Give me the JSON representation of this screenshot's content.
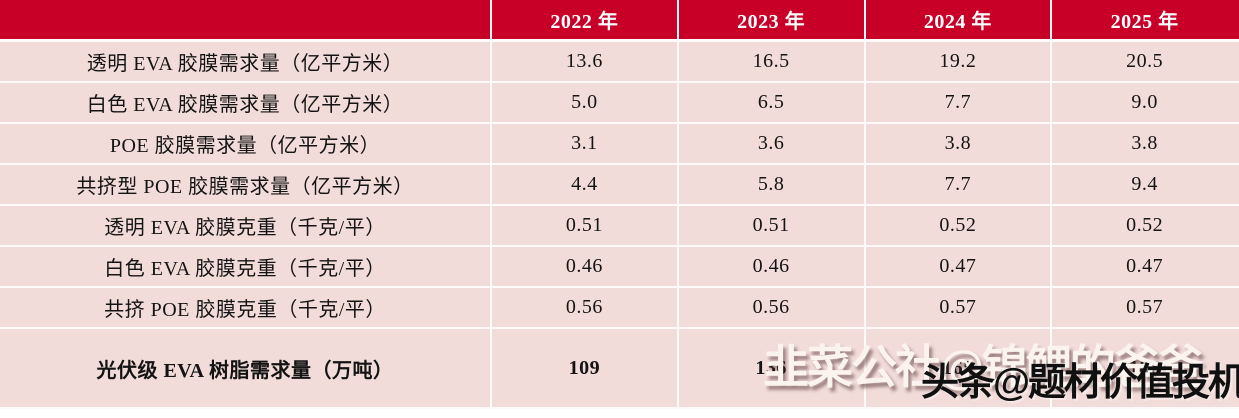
{
  "chart_data": {
    "type": "table",
    "title": "",
    "corner_label": "",
    "columns": [
      "2022 年",
      "2023 年",
      "2024 年",
      "2025 年"
    ],
    "rows": [
      {
        "label": "透明 EVA 胶膜需求量（亿平方米）",
        "values": [
          "13.6",
          "16.5",
          "19.2",
          "20.5"
        ]
      },
      {
        "label": "白色 EVA 胶膜需求量（亿平方米）",
        "values": [
          "5.0",
          "6.5",
          "7.7",
          "9.0"
        ]
      },
      {
        "label": "POE 胶膜需求量（亿平方米）",
        "values": [
          "3.1",
          "3.6",
          "3.8",
          "3.8"
        ]
      },
      {
        "label": "共挤型 POE 胶膜需求量（亿平方米）",
        "values": [
          "4.4",
          "5.8",
          "7.7",
          "9.4"
        ]
      },
      {
        "label": "透明 EVA 胶膜克重（千克/平）",
        "values": [
          "0.51",
          "0.51",
          "0.52",
          "0.52"
        ]
      },
      {
        "label": "白色 EVA 胶膜克重（千克/平）",
        "values": [
          "0.46",
          "0.46",
          "0.47",
          "0.47"
        ]
      },
      {
        "label": "共挤 POE 胶膜克重（千克/平）",
        "values": [
          "0.56",
          "0.56",
          "0.57",
          "0.57"
        ]
      },
      {
        "label": "光伏级 EVA 树脂需求量（万吨）",
        "values": [
          "109",
          "136",
          "165",
          "186"
        ]
      }
    ],
    "layout": {
      "grid": "white 2px separators",
      "header_position": "top"
    }
  },
  "watermarks": {
    "white_text": "韭菜公社@锦鲤的爸爸",
    "black_text": "头条@题材价值投机"
  },
  "colors": {
    "header_bg": "#C80028",
    "header_text": "#FFFFFF",
    "row_bg": "#F2DCD9",
    "grid": "#FDFAF9",
    "body_text": "#141414"
  }
}
